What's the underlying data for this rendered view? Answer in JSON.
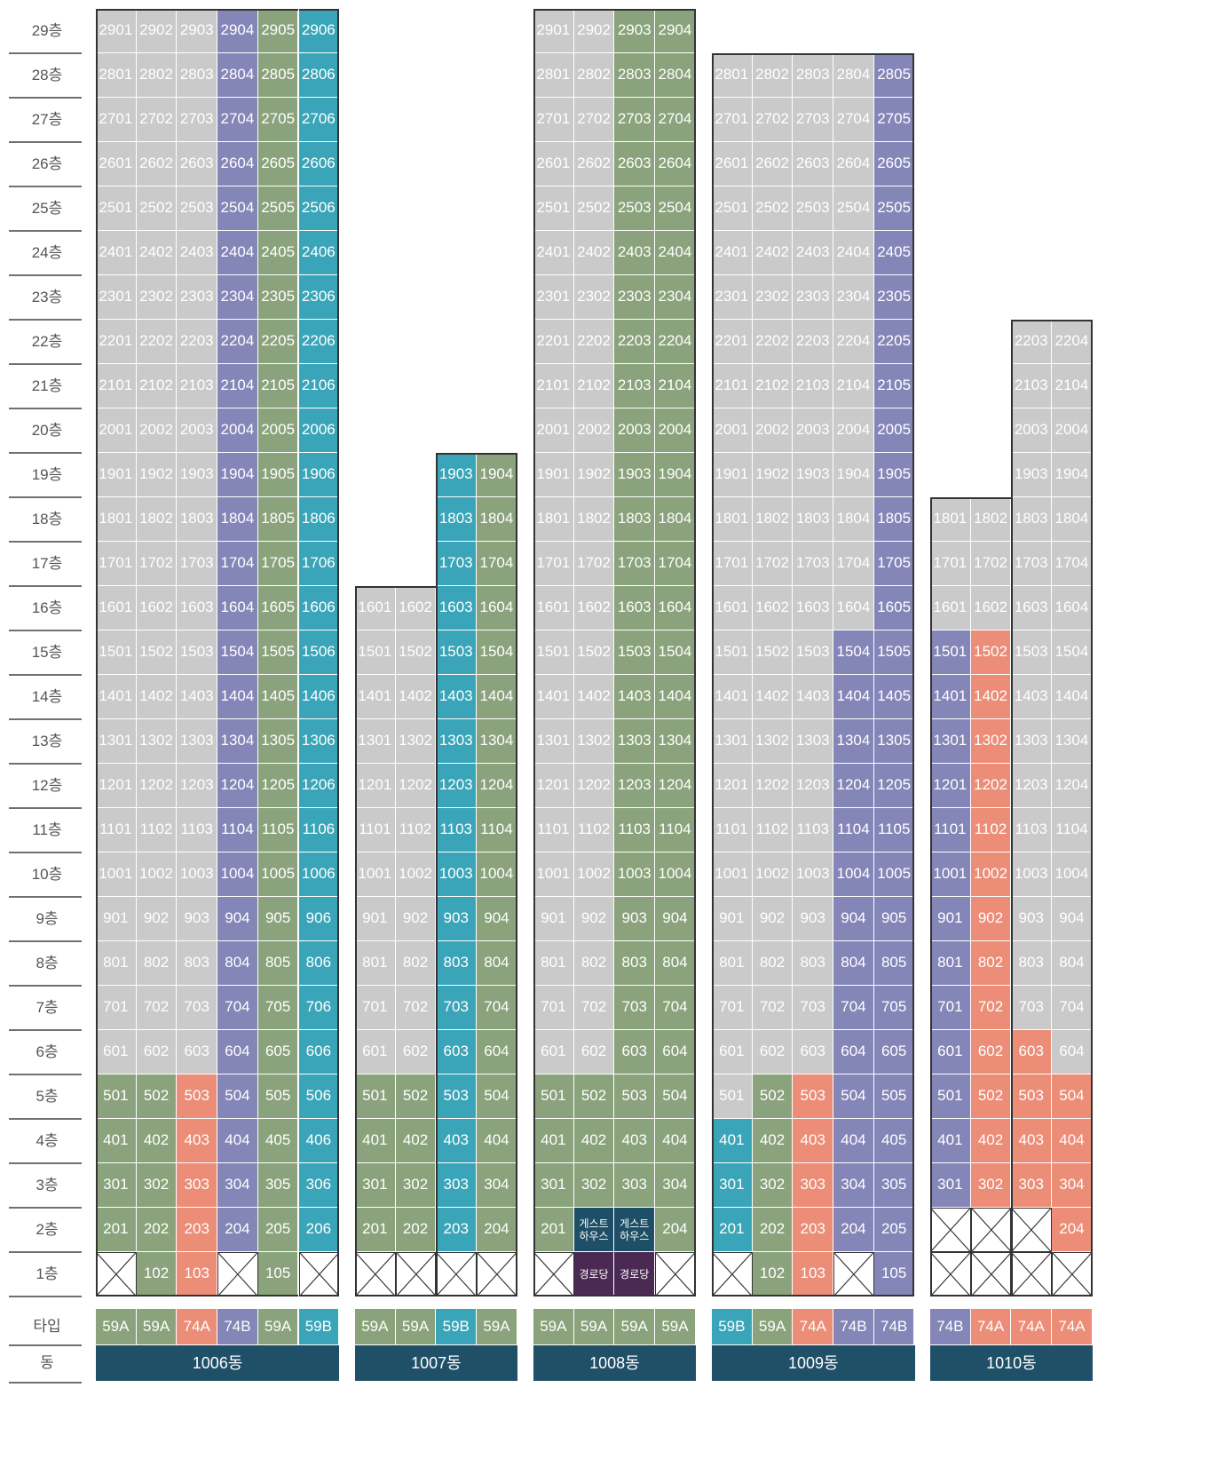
{
  "floor_labels": [
    "29층",
    "28층",
    "27층",
    "26층",
    "25층",
    "24층",
    "23층",
    "22층",
    "21층",
    "20층",
    "19층",
    "18층",
    "17층",
    "16층",
    "15층",
    "14층",
    "13층",
    "12층",
    "11층",
    "10층",
    "9층",
    "8층",
    "7층",
    "6층",
    "5층",
    "4층",
    "3층",
    "2층",
    "1층"
  ],
  "footer_labels": {
    "type": "타입",
    "dong": "동"
  },
  "colors": {
    "59A": "#8aa37c",
    "59B": "#3aa5b8",
    "74A": "#ec8d77",
    "74B": "#8586b8",
    "sold": "#cacaca",
    "guest": "#1e4f66",
    "senior": "#4a2a52"
  },
  "buildings": [
    {
      "name": "1006동",
      "types": [
        "59A",
        "59A",
        "74A",
        "74B",
        "59A",
        "59B"
      ],
      "max_floor": 29,
      "sold_rules": [
        {
          "cols": [
            1,
            2,
            3
          ],
          "from": 6,
          "to": 29
        }
      ],
      "empty": [
        "1-1",
        "1-4",
        "1-6"
      ],
      "special": []
    },
    {
      "name": "1007동",
      "types": [
        "59A",
        "59A",
        "59B",
        "59A"
      ],
      "col_max_floor": [
        16,
        16,
        19,
        19
      ],
      "sold_rules": [
        {
          "cols": [
            1,
            2
          ],
          "from": 6,
          "to": 16
        }
      ],
      "empty": [
        "1-1",
        "1-2",
        "1-3",
        "1-4"
      ],
      "special": []
    },
    {
      "name": "1008동",
      "types": [
        "59A",
        "59A",
        "59A",
        "59A"
      ],
      "max_floor": 29,
      "sold_rules": [
        {
          "cols": [
            1,
            2
          ],
          "from": 6,
          "to": 29
        }
      ],
      "empty": [
        "1-1",
        "1-4"
      ],
      "special": [
        {
          "floor": 2,
          "col": 2,
          "label": "게스트 하우스",
          "kind": "guest"
        },
        {
          "floor": 2,
          "col": 3,
          "label": "게스트 하우스",
          "kind": "guest"
        },
        {
          "floor": 1,
          "col": 2,
          "label": "경로당",
          "kind": "senior"
        },
        {
          "floor": 1,
          "col": 3,
          "label": "경로당",
          "kind": "senior"
        }
      ]
    },
    {
      "name": "1009동",
      "types": [
        "59B",
        "59A",
        "74A",
        "74B",
        "74B"
      ],
      "max_floor": 28,
      "sold_rules": [
        {
          "cols": [
            1,
            2,
            3
          ],
          "from": 6,
          "to": 28
        },
        {
          "cols": [
            4
          ],
          "from": 16,
          "to": 28
        },
        {
          "cols": [
            1
          ],
          "from": 5,
          "to": 5
        }
      ],
      "empty": [
        "1-1",
        "1-4"
      ],
      "special": []
    },
    {
      "name": "1010동",
      "types": [
        "74B",
        "74A",
        "74A",
        "74A"
      ],
      "col_max_floor": [
        18,
        18,
        22,
        22
      ],
      "sold_rules": [
        {
          "cols": [
            1,
            2,
            3,
            4
          ],
          "from": 16,
          "to": 22
        },
        {
          "cols": [
            3,
            4
          ],
          "from": 7,
          "to": 15
        },
        {
          "cols": [
            4
          ],
          "from": 6,
          "to": 6
        }
      ],
      "unit_exceptions": [
        {
          "floor": 16,
          "col": 2,
          "type": "74A"
        }
      ],
      "empty": [
        "2-1",
        "2-2",
        "2-3",
        "1-1",
        "1-2",
        "1-3",
        "1-4"
      ],
      "special": []
    }
  ]
}
